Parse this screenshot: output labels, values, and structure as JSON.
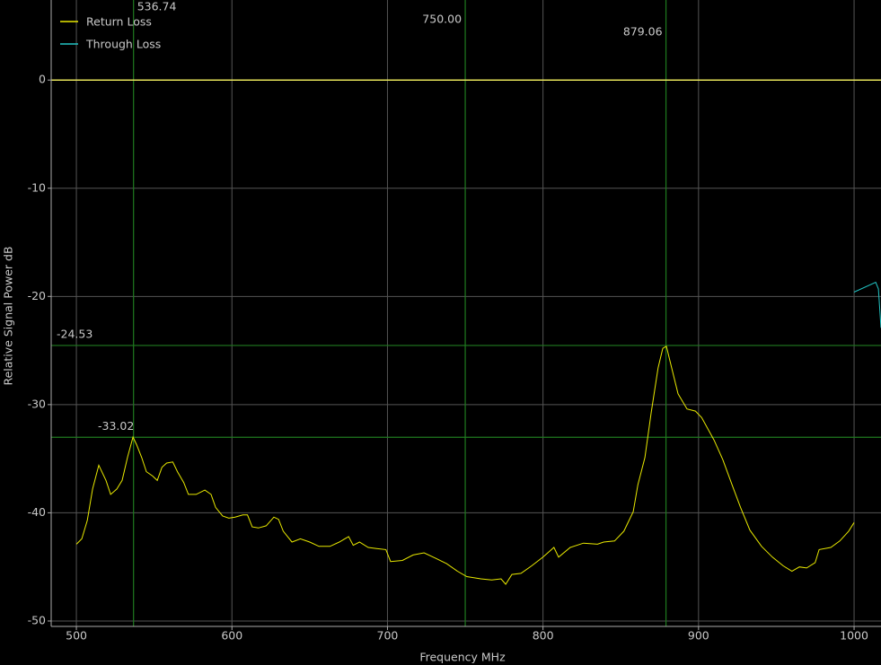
{
  "chart_data": {
    "type": "line",
    "x_label": "Frequency MHz",
    "y_label": "Relative Signal Power dB",
    "xlim": [
      483.8,
      1017.3
    ],
    "ylim": [
      -50.5,
      7.4
    ],
    "xticks": [
      500,
      600,
      700,
      800,
      900,
      1000
    ],
    "yticks": [
      0,
      -10,
      -20,
      -30,
      -40,
      -50
    ],
    "grid": true,
    "legend": "upper left",
    "reference_line": {
      "value": 0,
      "color": "#e6e35a"
    },
    "markers_x": [
      536.74,
      {
        "value": 750,
        "label": "750.00"
      },
      879.06
    ],
    "markers_y": [
      -24.53,
      -33.02
    ],
    "marker_color": "#1f7a1f",
    "series": [
      {
        "name": "Return Loss",
        "color": "#e8e800",
        "x": [
          500,
          503.5,
          507,
          510.4,
          514.4,
          519,
          522,
          526,
          529.4,
          533,
          536.4,
          538.7,
          542,
          545,
          549,
          552,
          555,
          558,
          562,
          565,
          569,
          572,
          577,
          582.6,
          586.6,
          589.5,
          594,
          598,
          602,
          607,
          610,
          613,
          617,
          622,
          627,
          630,
          633,
          638.6,
          644,
          650,
          656,
          663,
          669,
          675,
          678,
          682,
          687.6,
          693,
          699,
          702,
          709.6,
          716.5,
          723.5,
          731,
          738,
          745,
          751,
          760,
          767,
          773,
          776,
          780,
          785.8,
          792.7,
          800,
          807,
          810,
          817.5,
          826,
          835,
          839,
          846,
          852,
          858,
          861,
          865.5,
          869.5,
          874,
          877,
          879.3,
          882.7,
          886.8,
          892.6,
          898,
          902,
          910,
          915.6,
          921.5,
          927,
          933,
          940.5,
          947.5,
          954.4,
          960,
          964.8,
          969.5,
          975,
          977.5,
          985,
          990.8,
          996.5,
          1000
        ],
        "values": [
          -42.9,
          -42.4,
          -40.7,
          -37.8,
          -35.6,
          -37,
          -38.3,
          -37.8,
          -37,
          -34.8,
          -33.0,
          -33.7,
          -34.9,
          -36.2,
          -36.6,
          -37,
          -35.8,
          -35.4,
          -35.3,
          -36.2,
          -37.2,
          -38.3,
          -38.3,
          -37.9,
          -38.3,
          -39.5,
          -40.3,
          -40.5,
          -40.4,
          -40.2,
          -40.2,
          -41.3,
          -41.4,
          -41.2,
          -40.4,
          -40.6,
          -41.7,
          -42.7,
          -42.4,
          -42.7,
          -43.1,
          -43.1,
          -42.7,
          -42.2,
          -43,
          -42.7,
          -43.2,
          -43.3,
          -43.4,
          -44.5,
          -44.4,
          -43.9,
          -43.7,
          -44.2,
          -44.7,
          -45.4,
          -45.9,
          -46.1,
          -46.2,
          -46.1,
          -46.6,
          -45.7,
          -45.6,
          -44.9,
          -44.1,
          -43.2,
          -44.1,
          -43.2,
          -42.8,
          -42.9,
          -42.7,
          -42.6,
          -41.7,
          -39.9,
          -37.4,
          -34.9,
          -30.8,
          -26.6,
          -24.8,
          -24.6,
          -26.6,
          -29,
          -30.4,
          -30.6,
          -31.2,
          -33.3,
          -35.1,
          -37.4,
          -39.5,
          -41.6,
          -43.1,
          -44.1,
          -44.9,
          -45.4,
          -45,
          -45.1,
          -44.6,
          -43.4,
          -43.2,
          -42.6,
          -41.7,
          -40.9
        ]
      },
      {
        "name": "Through Loss",
        "color": "#22c4c4",
        "x": [
          1000,
          1013.9,
          1015.6,
          1017.3
        ],
        "values": [
          -19.6,
          -18.7,
          -19.3,
          -22.9
        ]
      }
    ]
  }
}
